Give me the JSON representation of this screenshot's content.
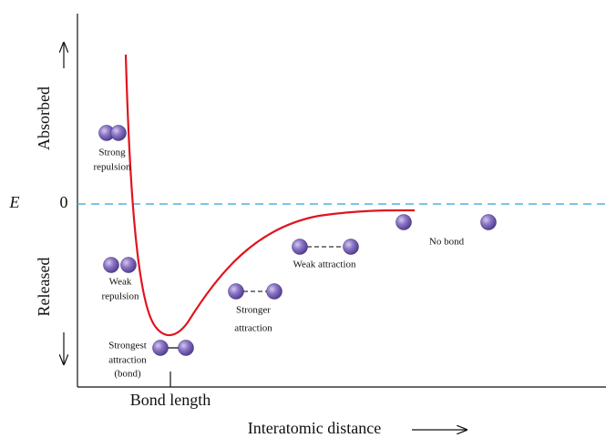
{
  "axis": {
    "y_symbol": "E",
    "zero_label": "0",
    "absorbed": "Absorbed",
    "released": "Released",
    "x_label": "Interatomic distance",
    "bond_length": "Bond length"
  },
  "annotations": [
    {
      "lines": [
        "Strong",
        "repulsion"
      ]
    },
    {
      "lines": [
        "Weak",
        "repulsion"
      ]
    },
    {
      "lines": [
        "Strongest",
        "attraction",
        "(bond)"
      ]
    },
    {
      "lines": [
        "Stronger",
        "attraction"
      ]
    },
    {
      "lines": [
        "Weak attraction"
      ]
    },
    {
      "lines": [
        "No bond"
      ]
    }
  ]
}
